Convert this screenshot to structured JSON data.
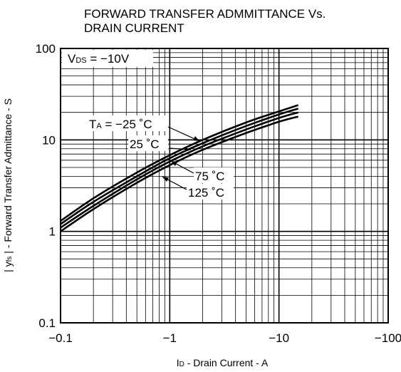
{
  "chart_data": {
    "type": "line",
    "title_lines": [
      "FORWARD TRANSFER ADMMITTANCE Vs.",
      "DRAIN CURRENT"
    ],
    "xlabel_parts": [
      "I",
      "D",
      " - Drain Current - A"
    ],
    "ylabel_parts": [
      "| y",
      "fs",
      " | - Forward Transfer Admittance - S"
    ],
    "x_scale": "log",
    "y_scale": "log",
    "x_magnitude_range": [
      0.1,
      100
    ],
    "ylim": [
      0.1,
      100
    ],
    "grid": true,
    "x_ticks": [
      {
        "value": 0.1,
        "label": "−0.1"
      },
      {
        "value": 1,
        "label": "−1"
      },
      {
        "value": 10,
        "label": "−10"
      },
      {
        "value": 100,
        "label": "−100"
      }
    ],
    "y_ticks": [
      {
        "value": 0.1,
        "label": "0.1"
      },
      {
        "value": 1,
        "label": "1"
      },
      {
        "value": 10,
        "label": "10"
      },
      {
        "value": 100,
        "label": "100"
      }
    ],
    "condition_parts": [
      "V",
      "DS",
      " = −10V"
    ],
    "series": [
      {
        "name": "TA = −25 ˚C",
        "label_parts": [
          "T",
          "A",
          " = −25 ˚C"
        ],
        "x": [
          -0.1,
          -0.2,
          -0.5,
          -1,
          -2,
          -5,
          -10,
          -15
        ],
        "y": [
          1.3,
          2.3,
          4.4,
          6.8,
          10.0,
          15.5,
          20.5,
          24.0
        ]
      },
      {
        "name": "25 ˚C",
        "label_parts": [
          "",
          "",
          "25 ˚C"
        ],
        "x": [
          -0.1,
          -0.2,
          -0.5,
          -1,
          -2,
          -5,
          -10,
          -15
        ],
        "y": [
          1.2,
          2.1,
          4.0,
          6.3,
          9.2,
          14.2,
          19.0,
          22.0
        ]
      },
      {
        "name": "75 ˚C",
        "label_parts": [
          "",
          "",
          "75 ˚C"
        ],
        "x": [
          -0.1,
          -0.2,
          -0.5,
          -1,
          -2,
          -5,
          -10,
          -15
        ],
        "y": [
          1.1,
          1.9,
          3.7,
          5.8,
          8.5,
          13.0,
          17.4,
          20.0
        ]
      },
      {
        "name": "125 ˚C",
        "label_parts": [
          "",
          "",
          "125 ˚C"
        ],
        "x": [
          -0.1,
          -0.2,
          -0.5,
          -1,
          -2,
          -5,
          -10,
          -15
        ],
        "y": [
          1.0,
          1.75,
          3.4,
          5.3,
          7.8,
          11.9,
          15.8,
          18.0
        ]
      }
    ]
  }
}
